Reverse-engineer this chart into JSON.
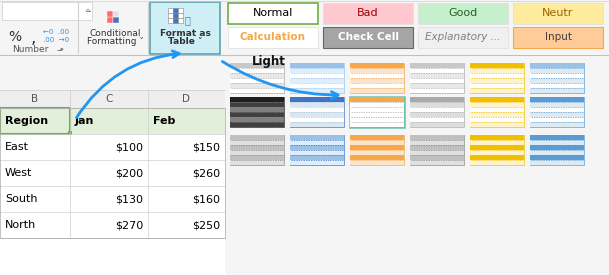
{
  "table_data": [
    [
      "Region",
      "Jan",
      "Feb"
    ],
    [
      "East",
      "$100",
      "$150"
    ],
    [
      "West",
      "$200",
      "$260"
    ],
    [
      "South",
      "$130",
      "$160"
    ],
    [
      "North",
      "$270",
      "$250"
    ]
  ],
  "col_headers": [
    "B",
    "C",
    "D"
  ],
  "styles_row1": [
    {
      "label": "Normal",
      "bg": "#ffffff",
      "tc": "#000000",
      "border": "#70ad47",
      "lw": 1.2
    },
    {
      "label": "Bad",
      "bg": "#ffc7ce",
      "tc": "#9c0006",
      "border": "#dddddd",
      "lw": 0.5
    },
    {
      "label": "Good",
      "bg": "#c6efce",
      "tc": "#276221",
      "border": "#dddddd",
      "lw": 0.5
    },
    {
      "label": "Neutr",
      "bg": "#ffeb9c",
      "tc": "#9c6500",
      "border": "#dddddd",
      "lw": 0.5
    }
  ],
  "styles_row2": [
    {
      "label": "Calculation",
      "bg": "#ffffff",
      "tc": "#f4a84a",
      "border": "#dddddd",
      "lw": 0.5,
      "bold": true,
      "italic": false
    },
    {
      "label": "Check Cell",
      "bg": "#a5a5a5",
      "tc": "#ffffff",
      "border": "#666666",
      "lw": 0.8,
      "bold": true,
      "italic": false
    },
    {
      "label": "Explanatory ...",
      "bg": "#f0f0f0",
      "tc": "#808080",
      "border": "#dddddd",
      "lw": 0.5,
      "bold": false,
      "italic": true
    },
    {
      "label": "Input",
      "bg": "#ffcc99",
      "tc": "#3f3f3f",
      "border": "#f4a84a",
      "lw": 0.8,
      "bold": false,
      "italic": false
    }
  ],
  "thumb_rows": [
    [
      {
        "hc": "#c8c8c8",
        "rc": [
          "#ffffff",
          "#e8e8e8",
          "#ffffff",
          "#e8e8e8",
          "#ffffff"
        ],
        "bc": "#aaaaaa",
        "lc": "#aaaaaa",
        "sel": false
      },
      {
        "hc": "#9bc2e6",
        "rc": [
          "#ddeeff",
          "#ffffff",
          "#ddeeff",
          "#ffffff",
          "#ddeeff"
        ],
        "bc": "#9bc2e6",
        "lc": "#9bc2e6",
        "sel": false
      },
      {
        "hc": "#f4a84a",
        "rc": [
          "#fce4cc",
          "#ffffff",
          "#fce4cc",
          "#ffffff",
          "#fce4cc"
        ],
        "bc": "#f4a84a",
        "lc": "#f4a84a",
        "sel": false
      },
      {
        "hc": "#c8c8c8",
        "rc": [
          "#ffffff",
          "#e8e8e8",
          "#ffffff",
          "#e8e8e8",
          "#ffffff"
        ],
        "bc": "#aaaaaa",
        "lc": "#aaaaaa",
        "sel": false
      },
      {
        "hc": "#f0c000",
        "rc": [
          "#fff2cc",
          "#ffffff",
          "#fff2cc",
          "#ffffff",
          "#fff2cc"
        ],
        "bc": "#f0c000",
        "lc": "#f0c000",
        "sel": false
      },
      {
        "hc": "#9bc2e6",
        "rc": [
          "#deeaf1",
          "#ffffff",
          "#deeaf1",
          "#ffffff",
          "#deeaf1"
        ],
        "bc": "#5b9bd5",
        "lc": "#5b9bd5",
        "sel": false
      }
    ],
    [
      {
        "hc": "#1f1f1f",
        "rc": [
          "#404040",
          "#808080",
          "#404040",
          "#808080",
          "#404040"
        ],
        "bc": "#1f1f1f",
        "lc": "#888888",
        "sel": false
      },
      {
        "hc": "#4472c4",
        "rc": [
          "#dce6f1",
          "#ffffff",
          "#dce6f1",
          "#ffffff",
          "#dce6f1"
        ],
        "bc": "#4472c4",
        "lc": "#9ec6e0",
        "sel": false
      },
      {
        "hc": "#f4a84a",
        "rc": [
          "#ffffff",
          "#ffffff",
          "#ffffff",
          "#ffffff",
          "#ffffff"
        ],
        "bc": "#70c0a8",
        "lc": "#aaaaaa",
        "sel": true
      },
      {
        "hc": "#aaaaaa",
        "rc": [
          "#dddddd",
          "#ffffff",
          "#dddddd",
          "#ffffff",
          "#dddddd"
        ],
        "bc": "#aaaaaa",
        "lc": "#aaaaaa",
        "sel": false
      },
      {
        "hc": "#f0c000",
        "rc": [
          "#fff2cc",
          "#ffffff",
          "#fff2cc",
          "#ffffff",
          "#fff2cc"
        ],
        "bc": "#f0c000",
        "lc": "#f0c000",
        "sel": false
      },
      {
        "hc": "#5b9bd5",
        "rc": [
          "#deeaf1",
          "#ffffff",
          "#deeaf1",
          "#ffffff",
          "#deeaf1"
        ],
        "bc": "#5b9bd5",
        "lc": "#5b9bd5",
        "sel": false
      }
    ],
    [
      {
        "hc": "#c0c0c0",
        "rc": [
          "#e0e0e0",
          "#c0c0c0",
          "#e0e0e0",
          "#c0c0c0",
          "#e0e0e0"
        ],
        "bc": "#888888",
        "lc": "#888888",
        "sel": false
      },
      {
        "hc": "#9bc2e6",
        "rc": [
          "#ddeeff",
          "#9bc2e6",
          "#ddeeff",
          "#9bc2e6",
          "#ddeeff"
        ],
        "bc": "#4472c4",
        "lc": "#4472c4",
        "sel": false
      },
      {
        "hc": "#f4a84a",
        "rc": [
          "#fce4cc",
          "#f4a84a",
          "#fce4cc",
          "#f4a84a",
          "#fce4cc"
        ],
        "bc": "#f4a84a",
        "lc": "#f4a84a",
        "sel": false
      },
      {
        "hc": "#c0c0c0",
        "rc": [
          "#e0e0e0",
          "#c0c0c0",
          "#e0e0e0",
          "#c0c0c0",
          "#e0e0e0"
        ],
        "bc": "#888888",
        "lc": "#888888",
        "sel": false
      },
      {
        "hc": "#f0c000",
        "rc": [
          "#fff2cc",
          "#f0c000",
          "#fff2cc",
          "#f0c000",
          "#fff2cc"
        ],
        "bc": "#f0c000",
        "lc": "#f0c000",
        "sel": false
      },
      {
        "hc": "#5b9bd5",
        "rc": [
          "#deeaf1",
          "#5b9bd5",
          "#deeaf1",
          "#5b9bd5",
          "#deeaf1"
        ],
        "bc": "#5b9bd5",
        "lc": "#5b9bd5",
        "sel": false
      }
    ]
  ]
}
